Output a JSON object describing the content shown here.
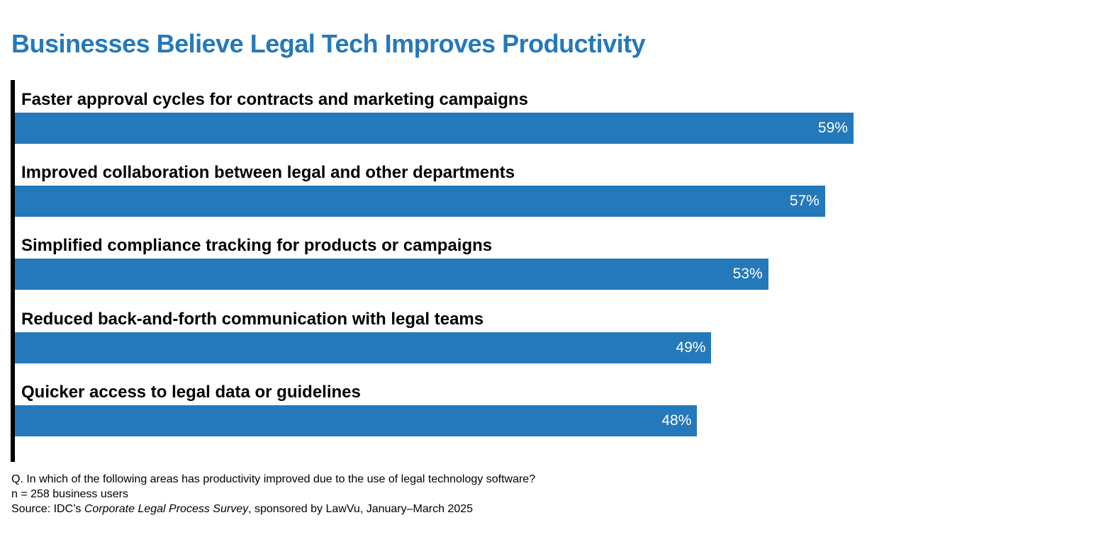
{
  "chart_data": {
    "type": "bar",
    "orientation": "horizontal",
    "title": "Businesses Believe Legal Tech Improves Productivity",
    "categories": [
      "Faster approval cycles for contracts and marketing campaigns",
      "Improved collaboration between legal and other departments",
      "Simplified compliance tracking for products or campaigns",
      "Reduced back-and-forth communication with legal teams",
      "Quicker access to legal data or guidelines"
    ],
    "values": [
      59,
      57,
      53,
      49,
      48
    ],
    "value_labels": [
      "59%",
      "57%",
      "53%",
      "49%",
      "48%"
    ],
    "value_unit": "%",
    "xlim": [
      0,
      100
    ],
    "grid": false,
    "legend": "none",
    "colors": {
      "bar": "#2479BB",
      "title": "#2479BB",
      "axis": "#000000",
      "value_text": "#ffffff"
    }
  },
  "footnote": {
    "question": "Q. In which of the following areas has productivity improved due to the use of legal technology software?",
    "sample": "n = 258 business users",
    "source_prefix": "Source: IDC’s ",
    "source_title": "Corporate Legal Process Survey",
    "source_suffix": ", sponsored by LawVu, January–March 2025"
  }
}
